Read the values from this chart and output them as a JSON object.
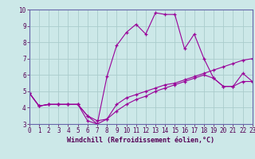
{
  "xlabel": "Windchill (Refroidissement éolien,°C)",
  "bg_color": "#cce8e8",
  "grid_color": "#aacccc",
  "line_color": "#990099",
  "border_color": "#6666aa",
  "xlim": [
    0,
    23
  ],
  "ylim": [
    3,
    10
  ],
  "x_ticks": [
    0,
    1,
    2,
    3,
    4,
    5,
    6,
    7,
    8,
    9,
    10,
    11,
    12,
    13,
    14,
    15,
    16,
    17,
    18,
    19,
    20,
    21,
    22,
    23
  ],
  "y_ticks": [
    3,
    4,
    5,
    6,
    7,
    8,
    9,
    10
  ],
  "line1_y": [
    4.9,
    4.1,
    4.2,
    4.2,
    4.2,
    4.2,
    3.5,
    3.0,
    5.9,
    7.8,
    8.6,
    9.1,
    8.5,
    9.8,
    9.7,
    9.7,
    7.6,
    8.5,
    7.0,
    5.8,
    5.3,
    5.3,
    6.1,
    5.6
  ],
  "line2_y": [
    4.9,
    4.1,
    4.2,
    4.2,
    4.2,
    4.2,
    3.2,
    3.0,
    3.3,
    4.2,
    4.6,
    4.8,
    5.0,
    5.2,
    5.4,
    5.5,
    5.7,
    5.9,
    6.1,
    6.3,
    6.5,
    6.7,
    6.9,
    7.0
  ],
  "line3_y": [
    4.9,
    4.1,
    4.2,
    4.2,
    4.2,
    4.2,
    3.5,
    3.2,
    3.3,
    3.8,
    4.2,
    4.5,
    4.7,
    5.0,
    5.2,
    5.4,
    5.6,
    5.8,
    6.0,
    5.8,
    5.3,
    5.3,
    5.6,
    5.6
  ],
  "tick_fontsize": 5.5,
  "xlabel_fontsize": 6.0
}
